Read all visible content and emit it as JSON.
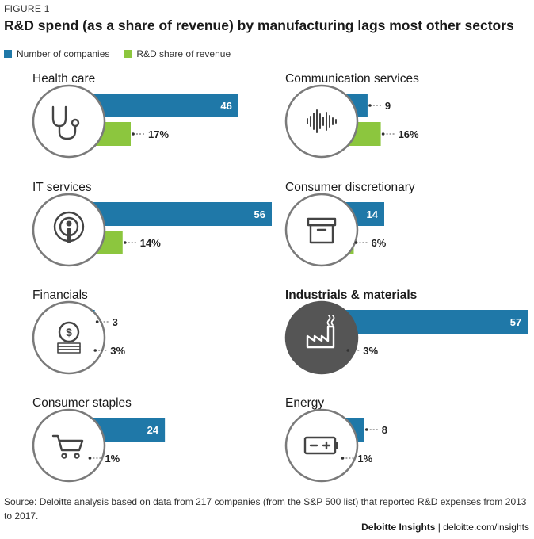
{
  "figure_label": "FIGURE 1",
  "source": "Source: Deloitte analysis based on data from 217 companies (from the S&P 500 list) that reported R&D expenses from 2013 to 2017.",
  "footer": {
    "brand": "Deloitte Insights",
    "separator": " | ",
    "url": "deloitte.com/insights"
  },
  "colors": {
    "companies": "#1f78a8",
    "share": "#8cc63e",
    "circle_border": "#7a7a7a",
    "highlight_circle": "#555555"
  },
  "chart_data": {
    "type": "bar",
    "title": "R&D spend (as a share of revenue) by manufacturing lags most other sectors",
    "legend": [
      "Number of companies",
      "R&D share of revenue"
    ],
    "legend_position": "top-left",
    "series": [
      {
        "name": "Number of companies",
        "key": "companies"
      },
      {
        "name": "R&D share of revenue",
        "key": "share"
      }
    ],
    "categories": [
      {
        "name": "Health care",
        "companies": 46,
        "share": 17,
        "share_label": "17%",
        "icon": "stethoscope-icon",
        "highlight": false
      },
      {
        "name": "Communication services",
        "companies": 9,
        "share": 16,
        "share_label": "16%",
        "icon": "sound-wave-icon",
        "highlight": false
      },
      {
        "name": "IT services",
        "companies": 56,
        "share": 14,
        "share_label": "14%",
        "icon": "podcast-icon",
        "highlight": false
      },
      {
        "name": "Consumer discretionary",
        "companies": 14,
        "share": 6,
        "share_label": "6%",
        "icon": "box-icon",
        "highlight": false
      },
      {
        "name": "Financials",
        "companies": 3,
        "share": 3,
        "share_label": "3%",
        "icon": "coins-icon",
        "highlight": false
      },
      {
        "name": "Industrials & materials",
        "companies": 57,
        "share": 3,
        "share_label": "3%",
        "icon": "factory-icon",
        "highlight": true
      },
      {
        "name": "Consumer staples",
        "companies": 24,
        "share": 1,
        "share_label": "1%",
        "icon": "shopping-cart-icon",
        "highlight": false
      },
      {
        "name": "Energy",
        "companies": 8,
        "share": 1,
        "share_label": "1%",
        "icon": "battery-icon",
        "highlight": false
      }
    ]
  }
}
